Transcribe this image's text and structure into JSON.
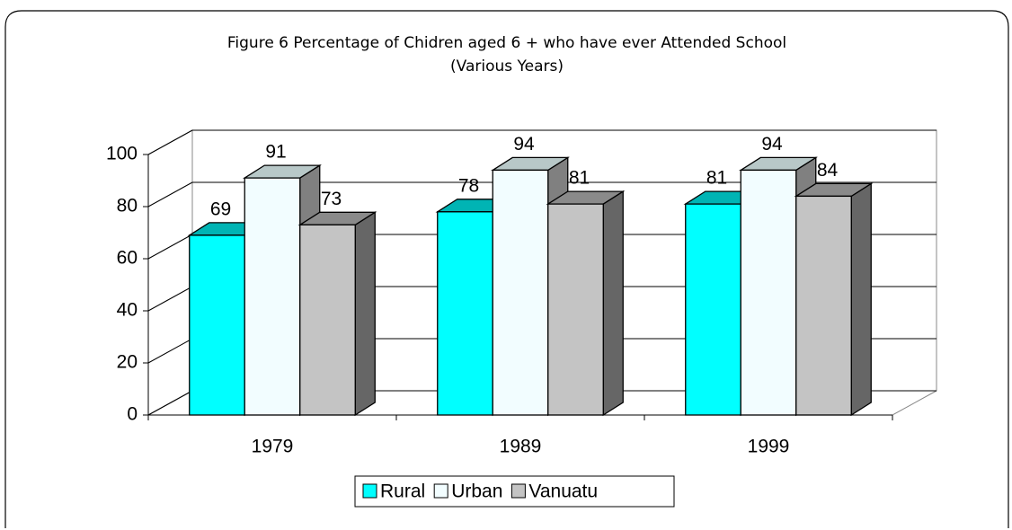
{
  "chart_data": {
    "type": "bar3d",
    "title": "Figure 6   Percentage of Chidren aged 6 + who have ever Attended School",
    "subtitle": "(Various Years)",
    "categories": [
      "1979",
      "1989",
      "1999"
    ],
    "series": [
      {
        "name": "Rural",
        "color": "#00FFFF",
        "values": [
          69,
          78,
          81
        ]
      },
      {
        "name": "Urban",
        "color": "#F2FDFF",
        "values": [
          91,
          94,
          94
        ]
      },
      {
        "name": "Vanuatu",
        "color": "#C4C4C4",
        "values": [
          73,
          81,
          84
        ]
      }
    ],
    "ylim": [
      0,
      100
    ],
    "yticks": [
      0,
      20,
      40,
      60,
      80,
      100
    ],
    "grid": true,
    "legend": "bottom"
  }
}
